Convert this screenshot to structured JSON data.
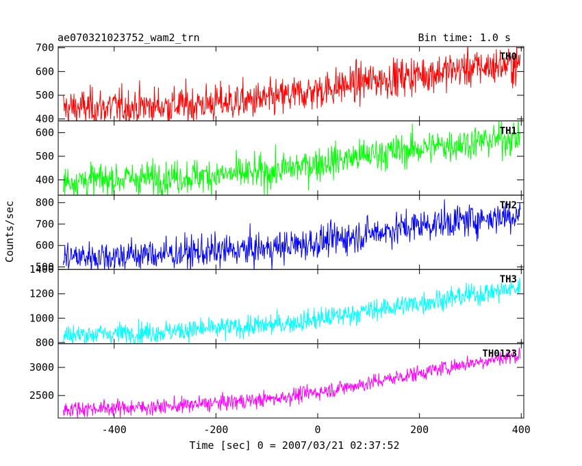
{
  "chart_data": {
    "type": "line",
    "title": "ae070321023752_wam2_trn",
    "bin_time_label": "Bin time: 1.0 s",
    "xlabel": "Time [sec] 0 = 2007/03/21 02:37:52",
    "ylabel": "Counts/sec",
    "xlim": [
      -510,
      405
    ],
    "xticks": [
      -400,
      -200,
      0,
      200,
      400
    ],
    "x_step": 1,
    "panels": [
      {
        "name": "TH0",
        "color": "#ff0000",
        "ylim": [
          392,
          705
        ],
        "yticks": [
          400,
          500,
          600,
          700
        ],
        "trend": {
          "x": [
            -500,
            -300,
            -100,
            0,
            100,
            300,
            400
          ],
          "y": [
            445,
            455,
            480,
            520,
            560,
            615,
            630
          ]
        },
        "noise": 40
      },
      {
        "name": "TH1",
        "color": "#00ff00",
        "ylim": [
          335,
          650
        ],
        "yticks": [
          400,
          500,
          600
        ],
        "trend": {
          "x": [
            -500,
            -300,
            -100,
            0,
            100,
            300,
            400
          ],
          "y": [
            395,
            410,
            430,
            470,
            505,
            560,
            580
          ]
        },
        "noise": 36
      },
      {
        "name": "TH2",
        "color": "#0000ff",
        "ylim": [
          488,
          835
        ],
        "yticks": [
          500,
          600,
          700,
          800
        ],
        "trend": {
          "x": [
            -500,
            -300,
            -100,
            0,
            100,
            200,
            300,
            400
          ],
          "y": [
            545,
            560,
            585,
            615,
            655,
            695,
            720,
            745
          ]
        },
        "noise": 38
      },
      {
        "name": "TH3",
        "color": "#00ffff",
        "ylim": [
          790,
          1400
        ],
        "yticks": [
          800,
          1000,
          1200,
          1400
        ],
        "trend": {
          "x": [
            -500,
            -300,
            -100,
            0,
            100,
            300,
            400
          ],
          "y": [
            860,
            890,
            940,
            990,
            1060,
            1190,
            1250
          ]
        },
        "noise": 45
      },
      {
        "name": "TH0123",
        "color": "#ff00ff",
        "ylim": [
          2100,
          3420
        ],
        "yticks": [
          2500,
          3000
        ],
        "trend": {
          "x": [
            -500,
            -300,
            -100,
            0,
            100,
            200,
            300,
            400
          ],
          "y": [
            2260,
            2300,
            2430,
            2560,
            2720,
            2900,
            3080,
            3220
          ]
        },
        "noise": 70
      }
    ]
  }
}
